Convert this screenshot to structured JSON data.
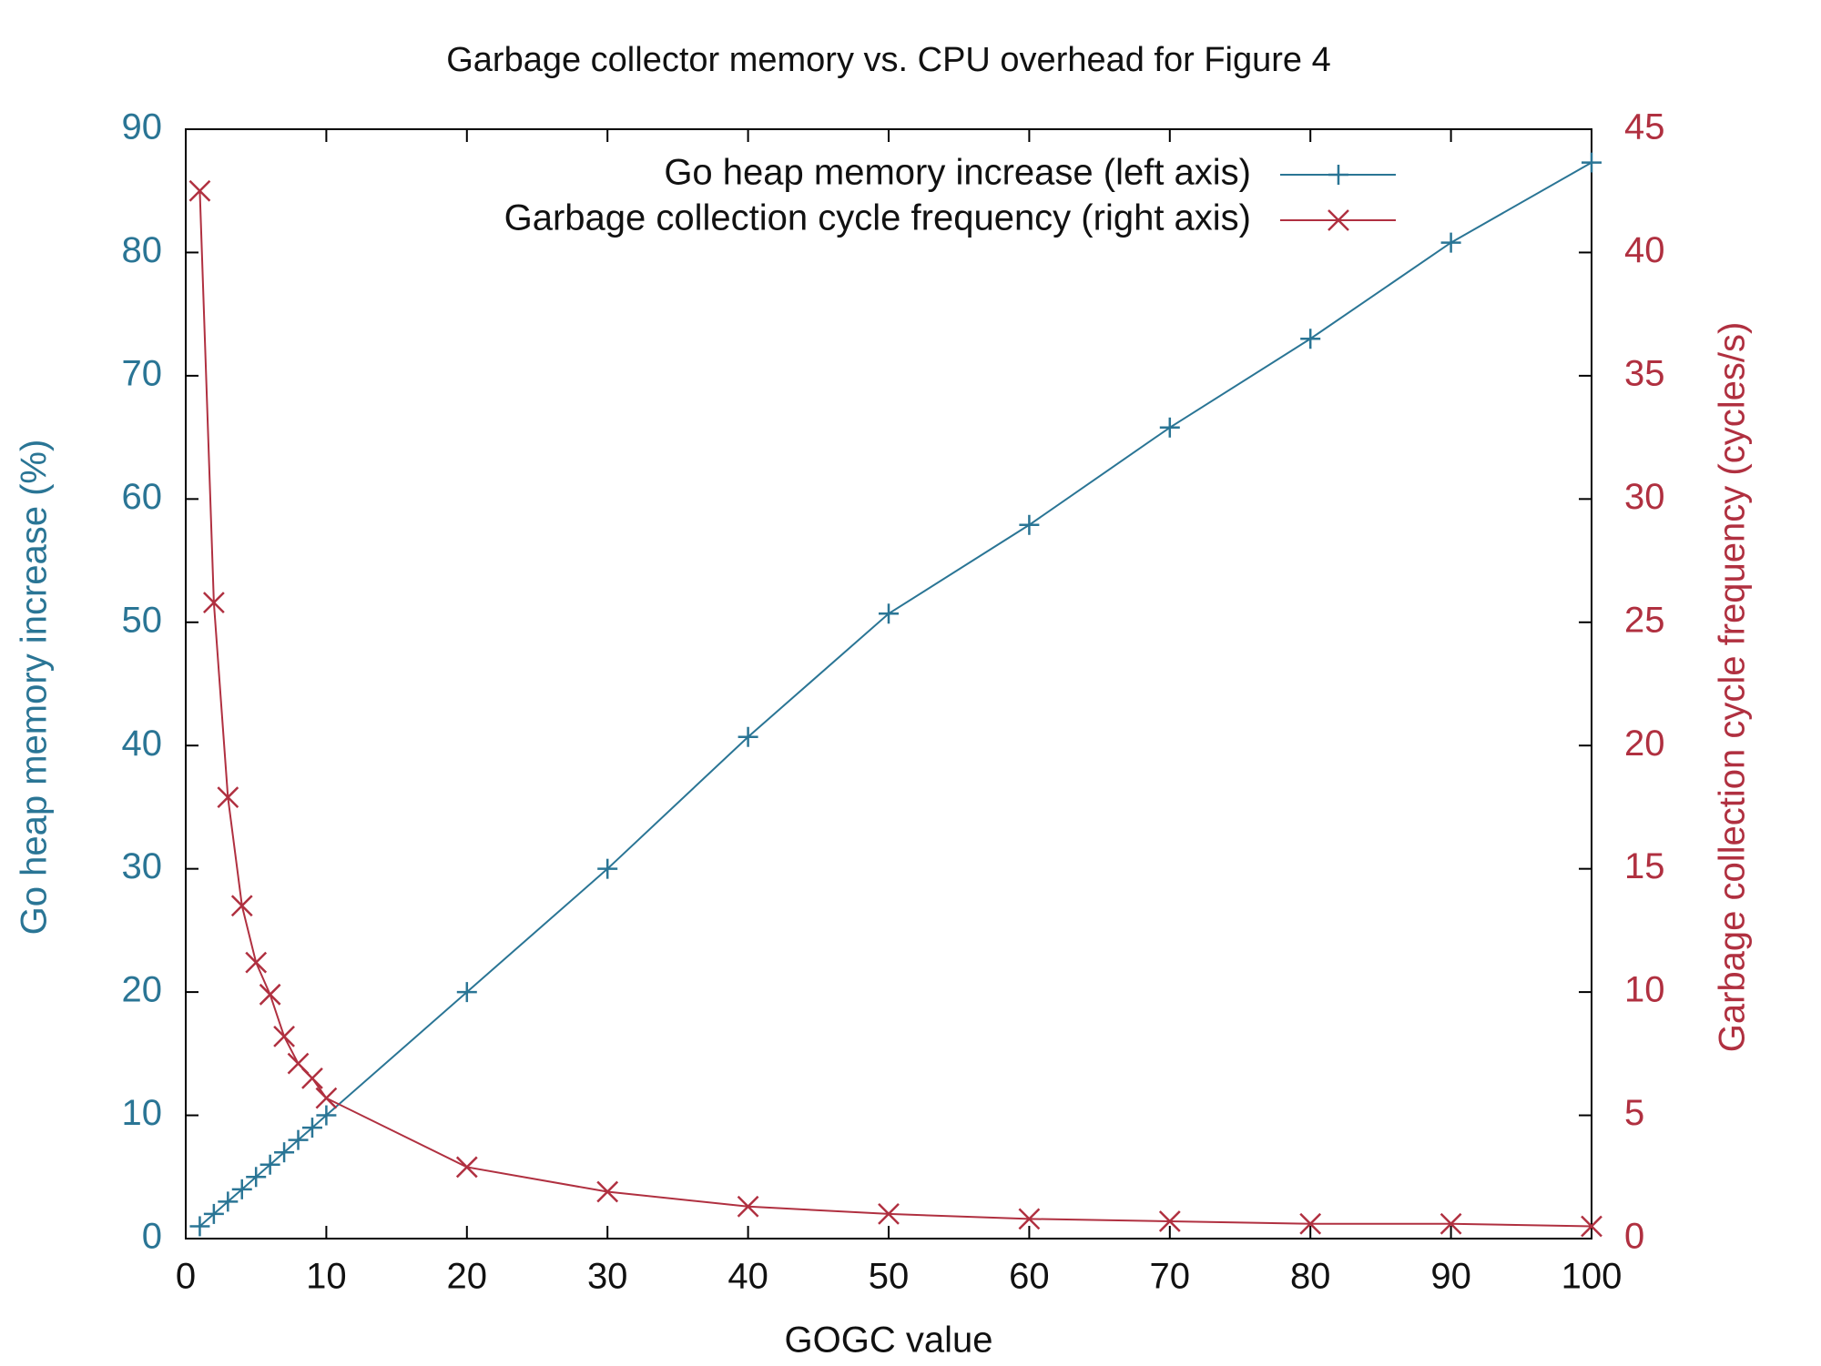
{
  "chart_data": {
    "type": "line",
    "title": "Garbage collector memory vs. CPU overhead for Figure 4",
    "x_label": "GOGC value",
    "y_label": "Go heap memory increase (%)",
    "y2_label": "Garbage collection cycle frequency (cycles/s)",
    "x": [
      1,
      2,
      3,
      4,
      5,
      6,
      7,
      8,
      9,
      10,
      20,
      30,
      40,
      50,
      60,
      70,
      80,
      90,
      100
    ],
    "series": [
      {
        "name": "Go heap memory increase (left axis)",
        "color": "#2a7595",
        "marker": "+",
        "axis": "y",
        "values": [
          1,
          2,
          3,
          4,
          5,
          6,
          7,
          8,
          9,
          10,
          20,
          30,
          40.7,
          50.7,
          57.9,
          65.8,
          73,
          80.8,
          87.3
        ]
      },
      {
        "name": "Garbage collection cycle frequency (right axis)",
        "color": "#b03040",
        "marker": "x",
        "axis": "y2",
        "values": [
          42.5,
          25.8,
          17.9,
          13.5,
          11.2,
          9.9,
          8.2,
          7.1,
          6.5,
          5.7,
          2.9,
          1.9,
          1.3,
          1.0,
          0.8,
          0.7,
          0.6,
          0.6,
          0.5
        ]
      }
    ],
    "xlim": [
      0,
      100
    ],
    "xticks": [
      0,
      10,
      20,
      30,
      40,
      50,
      60,
      70,
      80,
      90,
      100
    ],
    "ylim": [
      0,
      90
    ],
    "yticks": [
      0,
      10,
      20,
      30,
      40,
      50,
      60,
      70,
      80,
      90
    ],
    "y2lim": [
      0,
      45
    ],
    "y2ticks": [
      0,
      5,
      10,
      15,
      20,
      25,
      30,
      35,
      40,
      45
    ],
    "grid": false,
    "legend": "upper right"
  }
}
